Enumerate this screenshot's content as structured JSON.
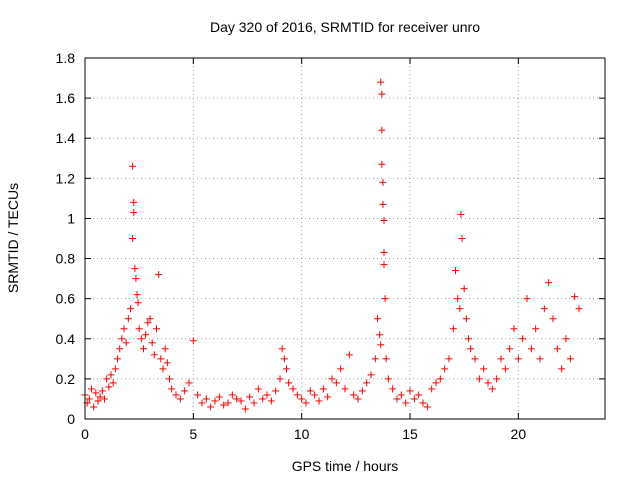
{
  "chart_data": {
    "type": "scatter",
    "title": "Day 320 of 2016, SRMTID for receiver unro",
    "xlabel": "GPS time / hours",
    "ylabel": "SRMTID / TECUs",
    "xlim": [
      0,
      24
    ],
    "ylim": [
      0,
      1.8
    ],
    "x_ticks": [
      0,
      5,
      10,
      15,
      20
    ],
    "x_tick_labels": [
      "0",
      "5",
      "10",
      "15",
      "20"
    ],
    "y_ticks": [
      0,
      0.2,
      0.4,
      0.6,
      0.8,
      1,
      1.2,
      1.4,
      1.6,
      1.8
    ],
    "y_tick_labels": [
      "0",
      "0.2",
      "0.4",
      "0.6",
      "0.8",
      "1",
      "1.2",
      "1.4",
      "1.6",
      "1.8"
    ],
    "grid": true,
    "marker": "+",
    "marker_color": "#ff0000",
    "series": [
      {
        "name": "SRMTID",
        "x": [
          0.0,
          0.1,
          0.2,
          0.3,
          0.4,
          0.5,
          0.6,
          0.7,
          0.8,
          0.9,
          1.0,
          1.1,
          1.2,
          1.3,
          1.4,
          1.5,
          1.6,
          1.7,
          1.8,
          1.9,
          2.0,
          2.1,
          2.2,
          2.2,
          2.25,
          2.25,
          2.3,
          2.35,
          2.4,
          2.45,
          2.5,
          2.6,
          2.7,
          2.8,
          2.9,
          3.0,
          3.1,
          3.2,
          3.3,
          3.4,
          3.5,
          3.6,
          3.7,
          3.8,
          3.9,
          4.0,
          4.2,
          4.4,
          4.6,
          4.8,
          5.0,
          5.2,
          5.4,
          5.6,
          5.8,
          6.0,
          6.2,
          6.4,
          6.6,
          6.8,
          7.0,
          7.2,
          7.4,
          7.6,
          7.8,
          8.0,
          8.2,
          8.4,
          8.6,
          8.8,
          9.0,
          9.1,
          9.2,
          9.3,
          9.4,
          9.6,
          9.8,
          10.0,
          10.2,
          10.4,
          10.6,
          10.8,
          11.0,
          11.2,
          11.4,
          11.6,
          11.8,
          12.0,
          12.2,
          12.4,
          12.6,
          12.8,
          13.0,
          13.2,
          13.4,
          13.5,
          13.6,
          13.65,
          13.65,
          13.7,
          13.7,
          13.7,
          13.75,
          13.75,
          13.8,
          13.8,
          13.8,
          13.85,
          13.9,
          14.0,
          14.2,
          14.4,
          14.6,
          14.8,
          15.0,
          15.2,
          15.4,
          15.6,
          15.8,
          16.0,
          16.2,
          16.4,
          16.6,
          16.8,
          17.0,
          17.1,
          17.2,
          17.3,
          17.35,
          17.4,
          17.5,
          17.6,
          17.7,
          17.8,
          18.0,
          18.2,
          18.4,
          18.6,
          18.8,
          19.0,
          19.2,
          19.4,
          19.6,
          19.8,
          20.0,
          20.2,
          20.4,
          20.6,
          20.8,
          21.0,
          21.2,
          21.4,
          21.6,
          21.8,
          22.0,
          22.2,
          22.4,
          22.6,
          22.8
        ],
        "y": [
          0.12,
          0.08,
          0.1,
          0.15,
          0.06,
          0.13,
          0.09,
          0.11,
          0.14,
          0.1,
          0.2,
          0.16,
          0.22,
          0.18,
          0.25,
          0.3,
          0.35,
          0.4,
          0.45,
          0.38,
          0.5,
          0.55,
          0.9,
          1.26,
          1.08,
          1.03,
          0.75,
          0.7,
          0.62,
          0.58,
          0.45,
          0.4,
          0.35,
          0.42,
          0.48,
          0.5,
          0.38,
          0.32,
          0.45,
          0.72,
          0.3,
          0.25,
          0.35,
          0.28,
          0.2,
          0.15,
          0.12,
          0.1,
          0.14,
          0.18,
          0.39,
          0.12,
          0.08,
          0.1,
          0.06,
          0.09,
          0.11,
          0.07,
          0.08,
          0.12,
          0.1,
          0.09,
          0.05,
          0.11,
          0.08,
          0.15,
          0.1,
          0.12,
          0.09,
          0.14,
          0.2,
          0.35,
          0.3,
          0.25,
          0.18,
          0.15,
          0.12,
          0.1,
          0.08,
          0.14,
          0.12,
          0.09,
          0.15,
          0.11,
          0.2,
          0.18,
          0.25,
          0.15,
          0.32,
          0.12,
          0.1,
          0.14,
          0.18,
          0.22,
          0.3,
          0.5,
          0.42,
          0.37,
          1.68,
          1.62,
          1.44,
          1.27,
          1.18,
          1.07,
          0.99,
          0.83,
          0.77,
          0.6,
          0.3,
          0.2,
          0.15,
          0.1,
          0.12,
          0.08,
          0.14,
          0.1,
          0.12,
          0.08,
          0.06,
          0.15,
          0.18,
          0.2,
          0.25,
          0.3,
          0.45,
          0.74,
          0.6,
          0.55,
          1.02,
          0.9,
          0.65,
          0.5,
          0.4,
          0.35,
          0.3,
          0.2,
          0.25,
          0.18,
          0.15,
          0.2,
          0.3,
          0.25,
          0.35,
          0.45,
          0.3,
          0.4,
          0.6,
          0.35,
          0.45,
          0.3,
          0.55,
          0.68,
          0.5,
          0.35,
          0.25,
          0.4,
          0.3,
          0.61,
          0.55
        ]
      }
    ]
  }
}
